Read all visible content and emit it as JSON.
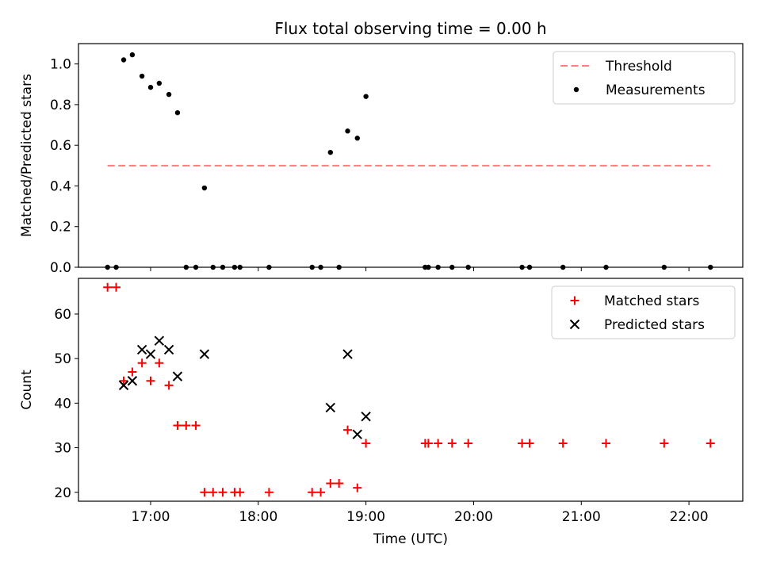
{
  "chart_data": [
    {
      "type": "scatter",
      "title": "Flux total observing time = 0.00 h",
      "xlabel": "",
      "ylabel": "Matched/Predicted stars",
      "xlim": [
        16.33,
        22.5
      ],
      "ylim": [
        0,
        1.1
      ],
      "yticks": [
        {
          "value": 0.0,
          "label": "0.0"
        },
        {
          "value": 0.2,
          "label": "0.2"
        },
        {
          "value": 0.4,
          "label": "0.4"
        },
        {
          "value": 0.6,
          "label": "0.6"
        },
        {
          "value": 0.8,
          "label": "0.8"
        },
        {
          "value": 1.0,
          "label": "1.0"
        }
      ],
      "xticks": [
        {
          "value": 17,
          "label": ""
        },
        {
          "value": 18,
          "label": ""
        },
        {
          "value": 19,
          "label": ""
        },
        {
          "value": 20,
          "label": ""
        },
        {
          "value": 21,
          "label": ""
        },
        {
          "value": 22,
          "label": ""
        }
      ],
      "legend_position": "top-right",
      "series": [
        {
          "name": "Threshold",
          "kind": "dashed-line",
          "color": "#ff7f7f",
          "x": [
            16.6,
            22.2
          ],
          "y": [
            0.5,
            0.5
          ]
        },
        {
          "name": "Measurements",
          "kind": "dot",
          "color": "#000000",
          "points": [
            [
              16.6,
              0.0
            ],
            [
              16.68,
              0.0
            ],
            [
              16.75,
              1.02
            ],
            [
              16.83,
              1.045
            ],
            [
              16.92,
              0.94
            ],
            [
              17.0,
              0.885
            ],
            [
              17.08,
              0.905
            ],
            [
              17.17,
              0.85
            ],
            [
              17.25,
              0.76
            ],
            [
              17.33,
              0.0
            ],
            [
              17.42,
              0.0
            ],
            [
              17.5,
              0.39
            ],
            [
              17.58,
              0.0
            ],
            [
              17.67,
              0.0
            ],
            [
              17.78,
              0.0
            ],
            [
              17.83,
              0.0
            ],
            [
              18.1,
              0.0
            ],
            [
              18.5,
              0.0
            ],
            [
              18.58,
              0.0
            ],
            [
              18.67,
              0.565
            ],
            [
              18.75,
              0.0
            ],
            [
              18.83,
              0.67
            ],
            [
              18.92,
              0.635
            ],
            [
              19.0,
              0.84
            ],
            [
              19.55,
              0.0
            ],
            [
              19.58,
              0.0
            ],
            [
              19.67,
              0.0
            ],
            [
              19.8,
              0.0
            ],
            [
              19.95,
              0.0
            ],
            [
              20.45,
              0.0
            ],
            [
              20.52,
              0.0
            ],
            [
              20.83,
              0.0
            ],
            [
              21.23,
              0.0
            ],
            [
              21.77,
              0.0
            ],
            [
              22.2,
              0.0
            ]
          ]
        }
      ]
    },
    {
      "type": "scatter",
      "title": "",
      "xlabel": "Time (UTC)",
      "ylabel": "Count",
      "xlim": [
        16.33,
        22.5
      ],
      "ylim": [
        18,
        68
      ],
      "yticks": [
        {
          "value": 20,
          "label": "20"
        },
        {
          "value": 30,
          "label": "30"
        },
        {
          "value": 40,
          "label": "40"
        },
        {
          "value": 50,
          "label": "50"
        },
        {
          "value": 60,
          "label": "60"
        }
      ],
      "xticks": [
        {
          "value": 17,
          "label": "17:00"
        },
        {
          "value": 18,
          "label": "18:00"
        },
        {
          "value": 19,
          "label": "19:00"
        },
        {
          "value": 20,
          "label": "20:00"
        },
        {
          "value": 21,
          "label": "21:00"
        },
        {
          "value": 22,
          "label": "22:00"
        }
      ],
      "legend_position": "top-right",
      "series": [
        {
          "name": "Matched stars",
          "kind": "plus",
          "color": "#ff0000",
          "points": [
            [
              16.6,
              66
            ],
            [
              16.68,
              66
            ],
            [
              16.75,
              45
            ],
            [
              16.83,
              47
            ],
            [
              16.92,
              49
            ],
            [
              17.0,
              45
            ],
            [
              17.08,
              49
            ],
            [
              17.17,
              44
            ],
            [
              17.25,
              35
            ],
            [
              17.33,
              35
            ],
            [
              17.42,
              35
            ],
            [
              17.5,
              20
            ],
            [
              17.58,
              20
            ],
            [
              17.67,
              20
            ],
            [
              17.78,
              20
            ],
            [
              17.83,
              20
            ],
            [
              18.1,
              20
            ],
            [
              18.5,
              20
            ],
            [
              18.58,
              20
            ],
            [
              18.67,
              22
            ],
            [
              18.75,
              22
            ],
            [
              18.83,
              34
            ],
            [
              18.92,
              21
            ],
            [
              19.0,
              31
            ],
            [
              19.55,
              31
            ],
            [
              19.58,
              31
            ],
            [
              19.67,
              31
            ],
            [
              19.8,
              31
            ],
            [
              19.95,
              31
            ],
            [
              20.45,
              31
            ],
            [
              20.52,
              31
            ],
            [
              20.83,
              31
            ],
            [
              21.23,
              31
            ],
            [
              21.77,
              31
            ],
            [
              22.2,
              31
            ]
          ]
        },
        {
          "name": "Predicted stars",
          "kind": "x",
          "color": "#000000",
          "points": [
            [
              16.75,
              44
            ],
            [
              16.83,
              45
            ],
            [
              16.92,
              52
            ],
            [
              17.0,
              51
            ],
            [
              17.08,
              54
            ],
            [
              17.17,
              52
            ],
            [
              17.25,
              46
            ],
            [
              17.5,
              51
            ],
            [
              18.67,
              39
            ],
            [
              18.83,
              51
            ],
            [
              18.92,
              33
            ],
            [
              19.0,
              37
            ]
          ]
        }
      ]
    }
  ]
}
